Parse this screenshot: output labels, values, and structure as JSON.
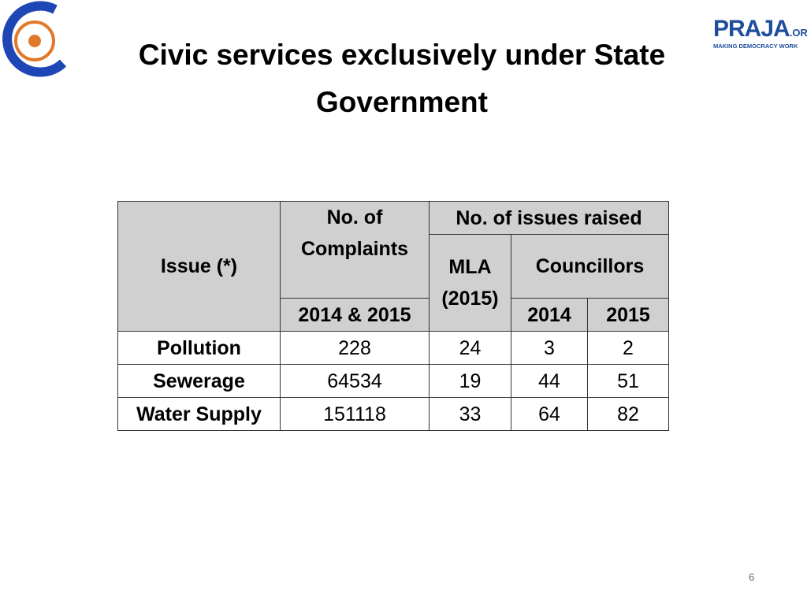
{
  "header": {
    "title": "Civic services exclusively under State Government",
    "logo_name": "PRAJA",
    "logo_suffix": ".ORG",
    "logo_tagline": "MAKING DEMOCRACY WORK"
  },
  "table": {
    "header": {
      "issue": "Issue (*)",
      "complaints": "No. of Complaints",
      "issues_raised": "No. of issues raised",
      "mla": "MLA (2015)",
      "councillors": "Councillors",
      "complaints_years": "2014 & 2015",
      "councillors_years": [
        "2014",
        "2015"
      ]
    },
    "rows": [
      [
        "Pollution",
        "228",
        "24",
        "3",
        "2"
      ],
      [
        "Sewerage",
        "64534",
        "19",
        "44",
        "51"
      ],
      [
        "Water Supply",
        "151118",
        "33",
        "64",
        "82"
      ]
    ]
  },
  "footer": {
    "page_number": "6"
  }
}
